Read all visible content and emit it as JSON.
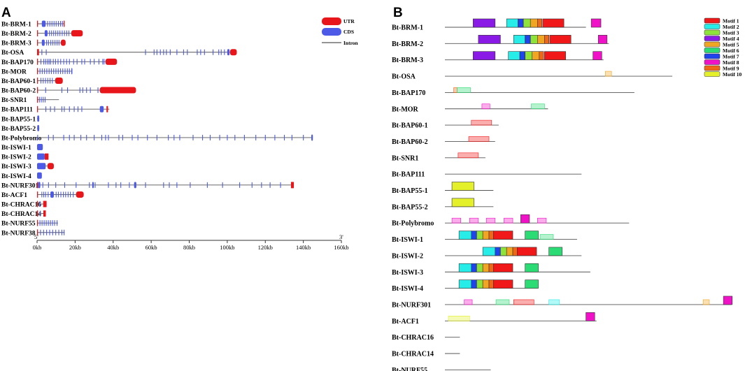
{
  "panel_a": {
    "label": "A",
    "legend": {
      "utr": "UTR",
      "cds": "CDS",
      "intron": "Intron"
    },
    "axis": {
      "five_prime": "5'",
      "three_prime": "3'",
      "min_kb": 0,
      "max_kb": 160,
      "ticks": [
        "0kb",
        "20kb",
        "40kb",
        "60kb",
        "80kb",
        "100kb",
        "120kb",
        "140kb",
        "160kb"
      ]
    },
    "colors": {
      "utr": "#e8161b",
      "cds": "#4d5ae8",
      "intron": "#555555"
    },
    "genes": [
      {
        "name": "Bt-BRM-1",
        "len": 14.5,
        "utr": [
          [
            0,
            0.4
          ],
          [
            14,
            14.5
          ]
        ],
        "cds": [
          [
            2.5,
            4.5
          ]
        ],
        "ex": [
          5.5,
          6.7,
          7.8,
          8.9,
          10,
          11.2,
          12.3,
          13.3
        ]
      },
      {
        "name": "Bt-BRM-2",
        "len": 24,
        "utr": [
          [
            0,
            0.4
          ],
          [
            18,
            24
          ]
        ],
        "cds": [
          [
            4,
            5.5
          ]
        ],
        "ex": [
          6.5,
          7.6,
          8.7,
          9.8,
          10.9,
          12,
          13.2,
          14.4,
          15.6,
          16.7
        ]
      },
      {
        "name": "Bt-BRM-3",
        "len": 15,
        "utr": [
          [
            0,
            0.4
          ],
          [
            12.5,
            15
          ]
        ],
        "cds": [
          [
            2.5,
            4
          ]
        ],
        "ex": [
          5,
          6,
          7.2,
          8.3,
          9.4,
          10.5,
          11.5
        ]
      },
      {
        "name": "Bt-OSA",
        "len": 105,
        "utr": [
          [
            0,
            1
          ],
          [
            101.5,
            105
          ]
        ],
        "cds": [
          [
            100,
            101.2
          ]
        ],
        "ex": [
          2.5,
          4.8,
          57,
          61.5,
          63,
          64.8,
          66.5,
          68,
          70,
          73.5,
          77,
          79,
          84.2,
          86,
          88,
          92.5,
          95.5,
          96.8,
          98.5
        ]
      },
      {
        "name": "Bt-BAP170",
        "len": 42,
        "utr": [
          [
            0,
            0.4
          ],
          [
            36,
            42
          ]
        ],
        "cds": [],
        "ex": [
          2,
          3.5,
          4.5,
          5.5,
          6.3,
          7.1,
          8.5,
          9.7,
          11,
          12.4,
          14,
          15.5,
          17,
          19.2,
          21,
          23.5,
          25,
          28,
          30,
          32.5,
          34.5,
          35.2
        ]
      },
      {
        "name": "Bt-MOR",
        "len": 18.5,
        "utr": [
          [
            0,
            0.3
          ]
        ],
        "cds": [
          [
            18,
            18.5
          ]
        ],
        "ex": [
          1.5,
          2.7,
          3.9,
          5.1,
          6.3,
          7.5,
          8.7,
          9.9,
          11.1,
          12.3,
          13.5,
          14.7,
          15.9,
          17
        ]
      },
      {
        "name": "Bt-BAP60-1",
        "len": 13.5,
        "utr": [
          [
            0,
            0.4
          ],
          [
            9.5,
            13.5
          ]
        ],
        "cds": [],
        "ex": [
          2,
          3.2,
          4.4,
          5.6,
          6.8,
          8
        ]
      },
      {
        "name": "Bt-BAP60-2",
        "len": 52,
        "utr": [
          [
            0,
            0.4
          ],
          [
            33,
            52
          ]
        ],
        "cds": [],
        "ex": [
          4.5,
          13,
          16,
          22.5,
          24,
          26,
          28,
          32
        ]
      },
      {
        "name": "Bt-SNR1",
        "len": 11.5,
        "utr": [
          [
            0,
            0.4
          ]
        ],
        "cds": [],
        "ex": [
          1.2,
          2.2,
          3.2,
          4.2
        ]
      },
      {
        "name": "Bt-BAP111",
        "len": 38,
        "utr": [
          [
            0,
            0.4
          ],
          [
            36.5,
            37.3
          ]
        ],
        "cds": [
          [
            33,
            35
          ]
        ],
        "ex": [
          4.6,
          7,
          9.2,
          13,
          14.3,
          17,
          19.5,
          21.5,
          23.5
        ]
      },
      {
        "name": "Bt-BAP55-1",
        "len": 1.2,
        "utr": [],
        "cds": [
          [
            0.1,
            1.1
          ]
        ],
        "ex": []
      },
      {
        "name": "Bt-BAP55-2",
        "len": 1.2,
        "utr": [],
        "cds": [
          [
            0.1,
            1.1
          ]
        ],
        "ex": []
      },
      {
        "name": "Bt-Polybromo",
        "len": 145,
        "utr": [],
        "cds": [
          [
            144.2,
            145
          ]
        ],
        "ex": [
          0.3,
          6,
          8.5,
          14,
          17,
          19.5,
          23,
          26,
          30,
          34,
          36,
          37.5,
          43,
          45,
          50,
          53,
          58,
          63,
          69,
          72,
          75,
          82,
          87,
          91,
          96,
          100,
          104,
          109,
          115,
          120,
          125,
          130,
          134,
          140
        ]
      },
      {
        "name": "Bt-ISWI-1",
        "len": 3,
        "utr": [],
        "cds": [
          [
            0,
            3
          ]
        ],
        "ex": []
      },
      {
        "name": "Bt-ISWI-2",
        "len": 6,
        "utr": [
          [
            4,
            6
          ]
        ],
        "cds": [
          [
            0,
            4
          ]
        ],
        "ex": []
      },
      {
        "name": "Bt-ISWI-3",
        "len": 8.8,
        "utr": [
          [
            5.5,
            8.8
          ]
        ],
        "cds": [
          [
            0,
            4.5
          ]
        ],
        "ex": []
      },
      {
        "name": "Bt-ISWI-4",
        "len": 2.5,
        "utr": [],
        "cds": [
          [
            0,
            2.5
          ]
        ],
        "ex": []
      },
      {
        "name": "Bt-NURF301",
        "len": 135,
        "utr": [
          [
            0,
            0.4
          ],
          [
            133.5,
            135
          ]
        ],
        "cds": [
          [
            0.5,
            1.7
          ],
          [
            29,
            29.8
          ],
          [
            51,
            52.2
          ]
        ],
        "ex": [
          3,
          6,
          9.8,
          14.5,
          20.5,
          27.5,
          30.5,
          37.5,
          41.5,
          44,
          48.5,
          57,
          66.5,
          69.5,
          73.5,
          80.5,
          89.5,
          97.5,
          106.5,
          113,
          118,
          122.5,
          128
        ]
      },
      {
        "name": "Bt-ACF1",
        "len": 24.5,
        "utr": [
          [
            0,
            0.4
          ],
          [
            20.5,
            24.5
          ]
        ],
        "cds": [
          [
            7,
            8.8
          ]
        ],
        "ex": [
          2.5,
          3.5,
          4.5,
          5.8,
          10,
          11.2,
          12.5,
          13.8,
          15,
          16.3,
          17.5,
          19
        ]
      },
      {
        "name": "Bt-CHRAC16",
        "len": 5,
        "utr": [
          [
            0,
            0.4
          ],
          [
            3.2,
            5
          ]
        ],
        "cds": [],
        "ex": [
          1.5
        ]
      },
      {
        "name": "Bt-CHRAC14",
        "len": 4.6,
        "utr": [
          [
            0,
            0.5
          ],
          [
            3.3,
            4.6
          ]
        ],
        "cds": [],
        "ex": [
          1.7
        ]
      },
      {
        "name": "Bt-NURF55",
        "len": 11,
        "utr": [
          [
            0,
            0.4
          ]
        ],
        "cds": [],
        "ex": [
          1.5,
          2.6,
          3.7,
          4.8,
          5.9,
          7,
          8.1,
          9.2,
          10.5
        ]
      },
      {
        "name": "Bt-NURF38",
        "len": 14.5,
        "utr": [
          [
            0,
            0.4
          ]
        ],
        "cds": [],
        "ex": [
          1.8,
          3.4,
          5,
          6.6,
          8.2,
          9.8,
          11.4,
          13,
          14.2
        ]
      }
    ]
  },
  "panel_b": {
    "label": "B",
    "motifs": [
      {
        "name": "Motif 1",
        "color": "#f01818"
      },
      {
        "name": "Motif 2",
        "color": "#26ede8"
      },
      {
        "name": "Motif 3",
        "color": "#8ee33a"
      },
      {
        "name": "Motif 4",
        "color": "#8a1ae6"
      },
      {
        "name": "Motif 5",
        "color": "#f0a623"
      },
      {
        "name": "Motif 6",
        "color": "#2bdb74"
      },
      {
        "name": "Motif 7",
        "color": "#1f44ed"
      },
      {
        "name": "Motif 8",
        "color": "#f012c7"
      },
      {
        "name": "Motif 9",
        "color": "#f06716"
      },
      {
        "name": "Motif 10",
        "color": "#e3f02a"
      }
    ],
    "genes": [
      {
        "name": "Bt-BRM-1",
        "len": 160,
        "m": [
          [
            4,
            32,
            25
          ],
          [
            2,
            70,
            13
          ],
          [
            7,
            83,
            6
          ],
          [
            3,
            89,
            8
          ],
          [
            5,
            97,
            8
          ],
          [
            9,
            105,
            5
          ],
          [
            1,
            111,
            24
          ],
          [
            8,
            166,
            11
          ]
        ]
      },
      {
        "name": "Bt-BRM-2",
        "len": 186,
        "m": [
          [
            4,
            38,
            25
          ],
          [
            2,
            78,
            13
          ],
          [
            7,
            91,
            6
          ],
          [
            3,
            97,
            8
          ],
          [
            5,
            105,
            8
          ],
          [
            9,
            113,
            5
          ],
          [
            1,
            119,
            24
          ],
          [
            8,
            174,
            10
          ]
        ]
      },
      {
        "name": "Bt-BRM-3",
        "len": 180,
        "m": [
          [
            4,
            32,
            25
          ],
          [
            2,
            72,
            13
          ],
          [
            7,
            85,
            6
          ],
          [
            3,
            91,
            8
          ],
          [
            5,
            99,
            8
          ],
          [
            9,
            107,
            5
          ],
          [
            1,
            113,
            24
          ],
          [
            8,
            168,
            10
          ]
        ]
      },
      {
        "name": "Bt-OSA",
        "len": 258,
        "m": [
          [
            5,
            182,
            7,
            0.35
          ]
        ]
      },
      {
        "name": "Bt-BAP170",
        "len": 215,
        "m": [
          [
            9,
            10,
            4,
            0.35
          ],
          [
            6,
            14,
            15,
            0.35
          ]
        ]
      },
      {
        "name": "Bt-MOR",
        "len": 117,
        "m": [
          [
            8,
            42,
            9,
            0.35
          ],
          [
            6,
            98,
            15,
            0.35
          ]
        ]
      },
      {
        "name": "Bt-BAP60-1",
        "len": 61,
        "m": [
          [
            1,
            30,
            23,
            0.35
          ]
        ]
      },
      {
        "name": "Bt-BAP60-2",
        "len": 57,
        "m": [
          [
            1,
            27,
            23,
            0.35
          ]
        ]
      },
      {
        "name": "Bt-SNR1",
        "len": 46,
        "m": [
          [
            1,
            15,
            23,
            0.35
          ]
        ]
      },
      {
        "name": "Bt-BAP111",
        "len": 155,
        "m": []
      },
      {
        "name": "Bt-BAP55-1",
        "len": 55,
        "m": [
          [
            10,
            8,
            25
          ]
        ]
      },
      {
        "name": "Bt-BAP55-2",
        "len": 55,
        "m": [
          [
            10,
            8,
            25
          ]
        ]
      },
      {
        "name": "Bt-Polybromo",
        "len": 209,
        "m": [
          [
            8,
            8,
            10,
            0.35
          ],
          [
            8,
            28,
            10,
            0.35
          ],
          [
            8,
            47,
            10,
            0.35
          ],
          [
            8,
            67,
            10,
            0.35
          ],
          [
            8,
            86,
            10
          ],
          [
            8,
            105,
            10,
            0.35
          ]
        ]
      },
      {
        "name": "Bt-ISWI-1",
        "len": 150,
        "m": [
          [
            2,
            16,
            14
          ],
          [
            7,
            30,
            6
          ],
          [
            3,
            36,
            7
          ],
          [
            5,
            43,
            7
          ],
          [
            9,
            50,
            5
          ],
          [
            1,
            55,
            22
          ],
          [
            6,
            91,
            15
          ],
          [
            6,
            108,
            15,
            0.35
          ]
        ]
      },
      {
        "name": "Bt-ISWI-2",
        "len": 155,
        "m": [
          [
            2,
            43,
            14
          ],
          [
            7,
            57,
            6
          ],
          [
            3,
            63,
            7
          ],
          [
            5,
            70,
            7
          ],
          [
            9,
            77,
            5
          ],
          [
            1,
            82,
            22
          ],
          [
            6,
            118,
            15
          ]
        ]
      },
      {
        "name": "Bt-ISWI-3",
        "len": 165,
        "m": [
          [
            2,
            16,
            14
          ],
          [
            7,
            30,
            6
          ],
          [
            3,
            36,
            7
          ],
          [
            5,
            43,
            7
          ],
          [
            9,
            50,
            5
          ],
          [
            1,
            55,
            22
          ],
          [
            6,
            91,
            15
          ]
        ]
      },
      {
        "name": "Bt-ISWI-4",
        "len": 105,
        "m": [
          [
            2,
            16,
            14
          ],
          [
            7,
            30,
            6
          ],
          [
            3,
            36,
            7
          ],
          [
            5,
            43,
            7
          ],
          [
            9,
            50,
            5
          ],
          [
            1,
            55,
            22
          ],
          [
            6,
            91,
            15
          ]
        ]
      },
      {
        "name": "Bt-NURF301",
        "len": 325,
        "m": [
          [
            8,
            22,
            9,
            0.35
          ],
          [
            6,
            58,
            15,
            0.35
          ],
          [
            1,
            78,
            23,
            0.35
          ],
          [
            2,
            118,
            12,
            0.35
          ],
          [
            5,
            293,
            7,
            0.35
          ],
          [
            8,
            316,
            10
          ]
        ]
      },
      {
        "name": "Bt-ACF1",
        "len": 172,
        "m": [
          [
            10,
            4,
            24,
            0.35
          ],
          [
            8,
            160,
            10
          ]
        ]
      },
      {
        "name": "Bt-CHRAC16",
        "len": 17,
        "m": []
      },
      {
        "name": "Bt-CHRAC14",
        "len": 17,
        "m": []
      },
      {
        "name": "Bt-NURF55",
        "len": 52,
        "m": []
      }
    ]
  }
}
